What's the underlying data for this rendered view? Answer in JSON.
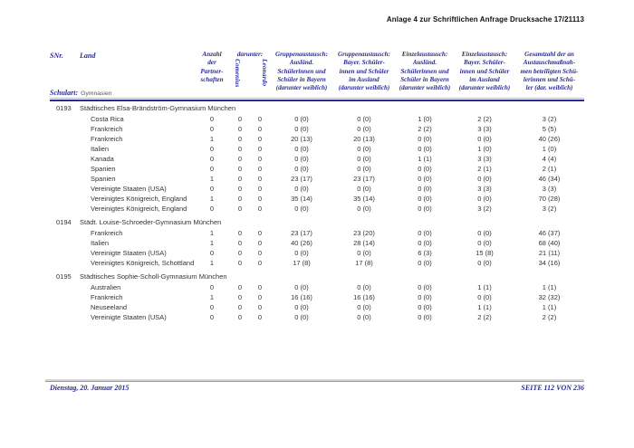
{
  "colors": {
    "navy": "#2b2b8e"
  },
  "doc_header": "Anlage 4 zur Schriftlichen Anfrage Drucksache 17/21113",
  "footer": {
    "date": "Dienstag, 20. Januar 2015",
    "page_label": "SEITE 112 VON 236"
  },
  "table": {
    "header": {
      "snr": "SNr.",
      "land": "Land",
      "schulart_label": "Schulart:",
      "schulart_value": "Gymnasien",
      "anzahl": "Anzahl\nder\nPartner-\nschaften",
      "darunter": "darunter:",
      "rotated": [
        "Comenius",
        "Leonardo"
      ],
      "value_columns": [
        "Gruppenaustausch:\nAusländ.\nSchülerinnen und\nSchüler in Bayern\n(darunter weiblich)",
        "Gruppenaustausch:\nBayer. Schüler-\ninnen und Schüler\nim Ausland\n(darunter weiblich)",
        "Einzelaustausch:\nAusländ.\nSchülerinnen und\nSchüler in Bayern\n(darunter weiblich)",
        "Einzelaustausch:\nBayer. Schüler-\ninnen und Schüler\nim Ausland\n(darunter weiblich)",
        "Gesamtzahl der an\nAustauschmaßnah-\nmen beteiligten Schü-\nlerinnen und Schü-\nler (dar. weiblich)"
      ]
    },
    "groups": [
      {
        "snr": "0193",
        "school": "Städtisches Elsa-Brändström-Gymnasium München",
        "rows": [
          {
            "land": "Costa Rica",
            "values": [
              "0",
              "0",
              "0",
              "0 (0)",
              "0 (0)",
              "1 (0)",
              "2 (2)",
              "3 (2)"
            ]
          },
          {
            "land": "Frankreich",
            "values": [
              "0",
              "0",
              "0",
              "0 (0)",
              "0 (0)",
              "2 (2)",
              "3 (3)",
              "5 (5)"
            ]
          },
          {
            "land": "Frankreich",
            "values": [
              "1",
              "0",
              "0",
              "20 (13)",
              "20 (13)",
              "0 (0)",
              "0 (0)",
              "40 (26)"
            ]
          },
          {
            "land": "Italien",
            "values": [
              "0",
              "0",
              "0",
              "0 (0)",
              "0 (0)",
              "0 (0)",
              "1 (0)",
              "1 (0)"
            ]
          },
          {
            "land": "Kanada",
            "values": [
              "0",
              "0",
              "0",
              "0 (0)",
              "0 (0)",
              "1 (1)",
              "3 (3)",
              "4 (4)"
            ]
          },
          {
            "land": "Spanien",
            "values": [
              "0",
              "0",
              "0",
              "0 (0)",
              "0 (0)",
              "0 (0)",
              "2 (1)",
              "2 (1)"
            ]
          },
          {
            "land": "Spanien",
            "values": [
              "1",
              "0",
              "0",
              "23 (17)",
              "23 (17)",
              "0 (0)",
              "0 (0)",
              "46 (34)"
            ]
          },
          {
            "land": "Vereinigte Staaten (USA)",
            "values": [
              "0",
              "0",
              "0",
              "0 (0)",
              "0 (0)",
              "0 (0)",
              "3 (3)",
              "3 (3)"
            ]
          },
          {
            "land": "Vereinigtes Königreich, England",
            "values": [
              "1",
              "0",
              "0",
              "35 (14)",
              "35 (14)",
              "0 (0)",
              "0 (0)",
              "70 (28)"
            ]
          },
          {
            "land": "Vereinigtes Königreich, England",
            "values": [
              "0",
              "0",
              "0",
              "0 (0)",
              "0 (0)",
              "0 (0)",
              "3 (2)",
              "3 (2)"
            ]
          }
        ]
      },
      {
        "snr": "0194",
        "school": "Städt. Louise-Schroeder-Gymnasium München",
        "rows": [
          {
            "land": "Frankreich",
            "values": [
              "1",
              "0",
              "0",
              "23 (17)",
              "23 (20)",
              "0 (0)",
              "0 (0)",
              "46 (37)"
            ]
          },
          {
            "land": "Italien",
            "values": [
              "1",
              "0",
              "0",
              "40 (26)",
              "28 (14)",
              "0 (0)",
              "0 (0)",
              "68 (40)"
            ]
          },
          {
            "land": "Vereinigte Staaten (USA)",
            "values": [
              "0",
              "0",
              "0",
              "0 (0)",
              "0 (0)",
              "6 (3)",
              "15 (8)",
              "21 (11)"
            ]
          },
          {
            "land": "Vereinigtes Königreich, Schottland",
            "values": [
              "1",
              "0",
              "0",
              "17 (8)",
              "17 (8)",
              "0 (0)",
              "0 (0)",
              "34 (16)"
            ]
          }
        ]
      },
      {
        "snr": "0195",
        "school": "Städtisches Sophie-Scholl-Gymnasium München",
        "rows": [
          {
            "land": "Australien",
            "values": [
              "0",
              "0",
              "0",
              "0 (0)",
              "0 (0)",
              "0 (0)",
              "1 (1)",
              "1 (1)"
            ]
          },
          {
            "land": "Frankreich",
            "values": [
              "1",
              "0",
              "0",
              "16 (16)",
              "16 (16)",
              "0 (0)",
              "0 (0)",
              "32 (32)"
            ]
          },
          {
            "land": "Neuseeland",
            "values": [
              "0",
              "0",
              "0",
              "0 (0)",
              "0 (0)",
              "0 (0)",
              "1 (1)",
              "1 (1)"
            ]
          },
          {
            "land": "Vereinigte Staaten (USA)",
            "values": [
              "0",
              "0",
              "0",
              "0 (0)",
              "0 (0)",
              "0 (0)",
              "2 (2)",
              "2 (2)"
            ]
          }
        ]
      }
    ]
  }
}
